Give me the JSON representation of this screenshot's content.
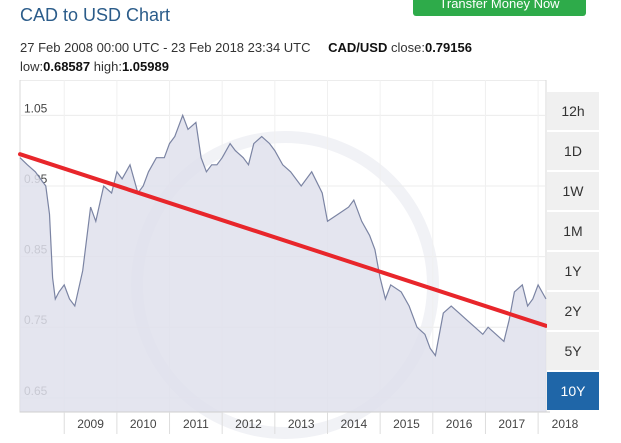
{
  "header": {
    "title": "CAD to USD Chart",
    "transfer_label": "Transfer Money Now"
  },
  "meta": {
    "period": "27 Feb 2008 00:00 UTC - 23 Feb 2018 23:34 UTC",
    "pair": "CAD/USD",
    "close_label": "close:",
    "close_value": "0.79156",
    "low_label": "low:",
    "low_value": "0.68587",
    "high_label": "high:",
    "high_value": "1.05989"
  },
  "ranges": [
    {
      "label": "12h",
      "active": false
    },
    {
      "label": "1D",
      "active": false
    },
    {
      "label": "1W",
      "active": false
    },
    {
      "label": "1M",
      "active": false
    },
    {
      "label": "1Y",
      "active": false
    },
    {
      "label": "2Y",
      "active": false
    },
    {
      "label": "5Y",
      "active": false
    },
    {
      "label": "10Y",
      "active": true
    }
  ],
  "colors": {
    "line": "#7b84a3",
    "area": "#dfe1ec",
    "trend": "#e8262b",
    "active_range": "#1f66a8"
  },
  "chart_data": {
    "type": "area",
    "x_unit": "year",
    "y_ticks": [
      1.05,
      0.95,
      0.85,
      0.75,
      0.65
    ],
    "x_ticks": [
      "2009",
      "2010",
      "2011",
      "2012",
      "2013",
      "2014",
      "2015",
      "2016",
      "2017",
      "2018"
    ],
    "xlim": [
      2008.16,
      2018.15
    ],
    "ylim": [
      0.63,
      1.1
    ],
    "grid": true,
    "series": [
      {
        "x": [
          2008.16,
          2008.3,
          2008.45,
          2008.55,
          2008.65,
          2008.72,
          2008.78,
          2008.83,
          2008.9,
          2009.0,
          2009.1,
          2009.2,
          2009.35,
          2009.5,
          2009.6,
          2009.75,
          2009.9,
          2010.0,
          2010.1,
          2010.25,
          2010.4,
          2010.5,
          2010.6,
          2010.75,
          2010.9,
          2011.0,
          2011.1,
          2011.25,
          2011.35,
          2011.5,
          2011.6,
          2011.7,
          2011.8,
          2011.9,
          2012.0,
          2012.15,
          2012.25,
          2012.4,
          2012.5,
          2012.6,
          2012.75,
          2012.9,
          2013.0,
          2013.15,
          2013.3,
          2013.5,
          2013.7,
          2013.9,
          2014.0,
          2014.2,
          2014.4,
          2014.5,
          2014.65,
          2014.8,
          2014.9,
          2015.0,
          2015.1,
          2015.2,
          2015.4,
          2015.55,
          2015.7,
          2015.85,
          2015.95,
          2016.05,
          2016.2,
          2016.35,
          2016.5,
          2016.65,
          2016.8,
          2016.95,
          2017.05,
          2017.2,
          2017.35,
          2017.45,
          2017.55,
          2017.7,
          2017.8,
          2017.9,
          2018.0,
          2018.15
        ],
        "y": [
          0.99,
          0.98,
          0.97,
          0.96,
          0.95,
          0.91,
          0.82,
          0.79,
          0.8,
          0.81,
          0.79,
          0.78,
          0.83,
          0.92,
          0.9,
          0.95,
          0.94,
          0.97,
          0.96,
          0.98,
          0.94,
          0.95,
          0.97,
          0.99,
          0.99,
          1.01,
          1.02,
          1.05,
          1.03,
          1.04,
          0.99,
          0.97,
          0.98,
          0.98,
          0.99,
          1.01,
          1.0,
          0.99,
          0.98,
          1.01,
          1.02,
          1.01,
          1.0,
          0.98,
          0.97,
          0.95,
          0.97,
          0.94,
          0.9,
          0.91,
          0.92,
          0.93,
          0.9,
          0.88,
          0.86,
          0.82,
          0.79,
          0.81,
          0.8,
          0.78,
          0.75,
          0.74,
          0.72,
          0.71,
          0.77,
          0.78,
          0.77,
          0.76,
          0.75,
          0.74,
          0.75,
          0.74,
          0.73,
          0.76,
          0.8,
          0.81,
          0.78,
          0.79,
          0.81,
          0.79
        ]
      }
    ],
    "trendline": {
      "x": [
        2008.16,
        2018.15
      ],
      "y": [
        0.995,
        0.752
      ]
    }
  }
}
